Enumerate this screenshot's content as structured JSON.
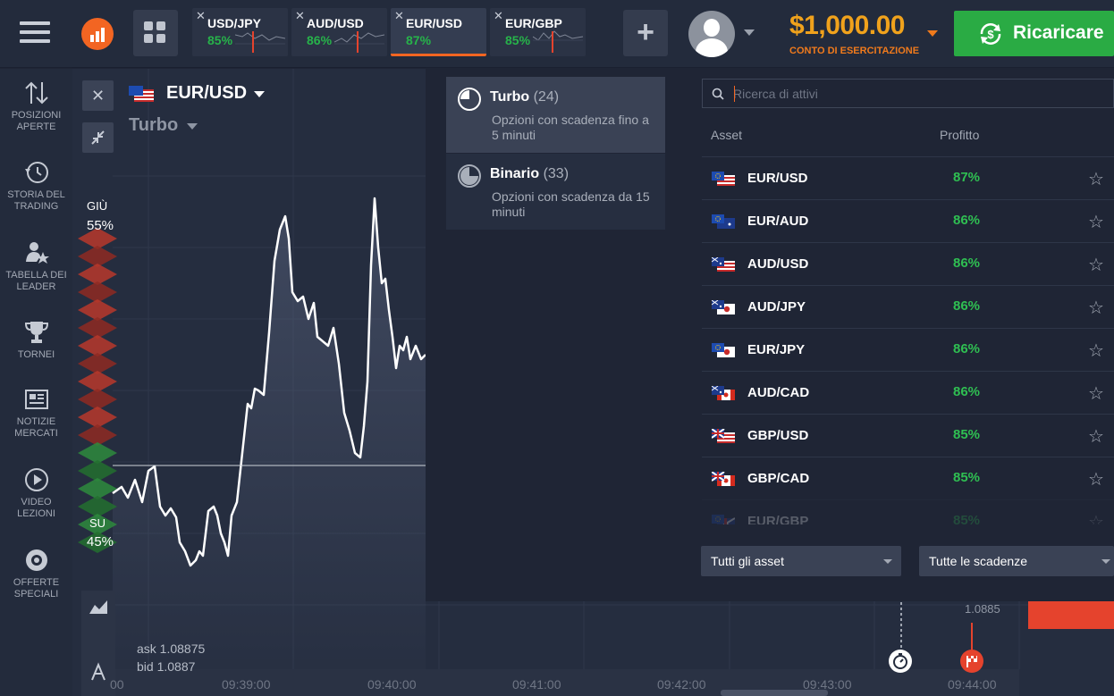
{
  "topbar": {
    "tabs": [
      {
        "pair": "USD/JPY",
        "pct": "85%",
        "active": false
      },
      {
        "pair": "AUD/USD",
        "pct": "86%",
        "active": false
      },
      {
        "pair": "EUR/USD",
        "pct": "87%",
        "active": true
      },
      {
        "pair": "EUR/GBP",
        "pct": "85%",
        "active": false
      }
    ],
    "balance": "$1,000.00",
    "balance_label": "CONTO DI ESERCITAZIONE",
    "recharge_label": "Ricaricare"
  },
  "sidebar": {
    "items": [
      {
        "label1": "POSIZIONI",
        "label2": "APERTE",
        "icon": "updown-arrows-icon"
      },
      {
        "label1": "STORIA DEL",
        "label2": "TRADING",
        "icon": "history-icon"
      },
      {
        "label1": "TABELLA DEI",
        "label2": "LEADER",
        "icon": "leader-icon"
      },
      {
        "label1": "TORNEI",
        "label2": "",
        "icon": "trophy-icon"
      },
      {
        "label1": "NOTIZIE",
        "label2": "MERCATI",
        "icon": "news-icon"
      },
      {
        "label1": "VIDEO",
        "label2": "LEZIONI",
        "icon": "play-icon"
      },
      {
        "label1": "OFFERTE",
        "label2": "SPECIALI",
        "icon": "gift-icon"
      }
    ]
  },
  "chart": {
    "asset": "EUR/USD",
    "mode": "Turbo",
    "down_label": "GIÙ",
    "down_pct": "55%",
    "up_label": "SU",
    "up_pct": "45%",
    "ask": "ask 1.08875",
    "bid": "bid 1.0887",
    "right_price": "1.0885",
    "x_ticks": [
      "00",
      "09:39:00",
      "09:40:00",
      "09:41:00",
      "09:42:00",
      "09:43:00",
      "09:44:00"
    ]
  },
  "panel": {
    "categories": [
      {
        "name": "Turbo",
        "count": "(24)",
        "desc": "Opzioni con scadenza fino a 5 minuti",
        "active": true
      },
      {
        "name": "Binario",
        "count": "(33)",
        "desc": "Opzioni con scadenza da 15 minuti",
        "active": false
      }
    ],
    "search_placeholder": "Ricerca di attivi",
    "header_asset": "Asset",
    "header_profit": "Profitto",
    "assets": [
      {
        "pair": "EUR/USD",
        "profit": "87%"
      },
      {
        "pair": "EUR/AUD",
        "profit": "86%"
      },
      {
        "pair": "AUD/USD",
        "profit": "86%"
      },
      {
        "pair": "AUD/JPY",
        "profit": "86%"
      },
      {
        "pair": "EUR/JPY",
        "profit": "86%"
      },
      {
        "pair": "AUD/CAD",
        "profit": "86%"
      },
      {
        "pair": "GBP/USD",
        "profit": "85%"
      },
      {
        "pair": "GBP/CAD",
        "profit": "85%"
      },
      {
        "pair": "EUR/GBP",
        "profit": "85%"
      }
    ],
    "filter_assets": "Tutti gli asset",
    "filter_expiry": "Tutte le scadenze"
  },
  "colors": {
    "accent": "#f26522",
    "profit_green": "#2fbf52",
    "balance_orange": "#f0a21c",
    "recharge_green": "#2aab44",
    "down_red": "#c0392b",
    "up_green": "#2e8b3d"
  }
}
